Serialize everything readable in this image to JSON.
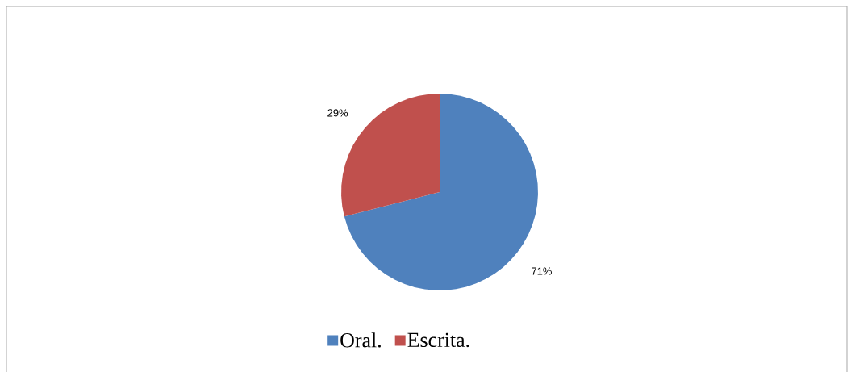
{
  "chart_data": {
    "type": "pie",
    "categories": [
      "Oral.",
      "Escrita."
    ],
    "values": [
      71,
      29
    ],
    "colors": [
      "#4f81bd",
      "#c0504d"
    ],
    "value_labels": [
      "71%",
      "29%"
    ],
    "legend": "bottom"
  }
}
